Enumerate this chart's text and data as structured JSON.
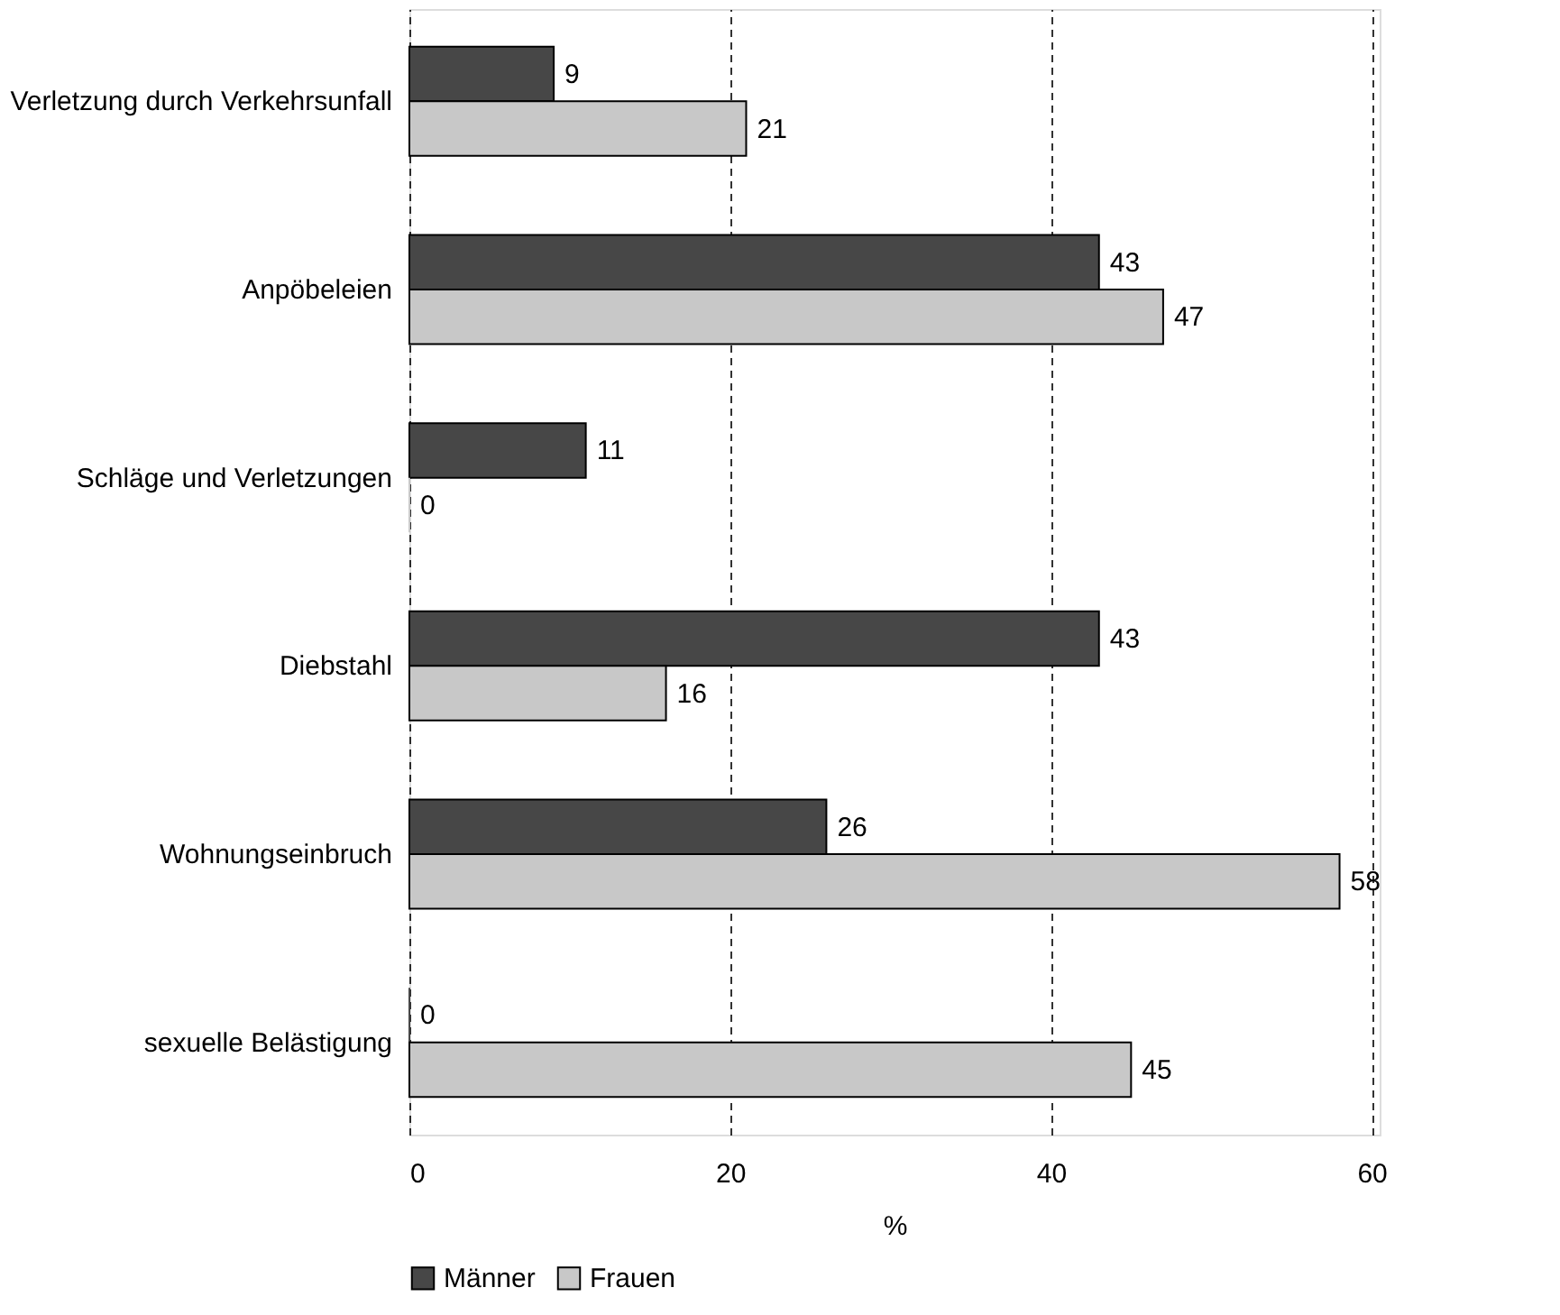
{
  "chart_data": {
    "type": "bar",
    "orientation": "horizontal",
    "xlabel": "%",
    "categories": [
      "Verletzung durch Verkehrsunfall",
      "Anpöbeleien",
      "Schläge und Verletzungen",
      "Diebstahl",
      "Wohnungseinbruch",
      "sexuelle Belästigung"
    ],
    "series": [
      {
        "name": "Männer",
        "color": "#474747",
        "values": [
          9,
          43,
          11,
          43,
          26,
          0
        ]
      },
      {
        "name": "Frauen",
        "color": "#c8c8c8",
        "values": [
          21,
          47,
          0,
          16,
          58,
          45
        ]
      }
    ],
    "xlim": [
      0,
      60.5
    ],
    "xticks": [
      0,
      20,
      40,
      60
    ],
    "grid": "x",
    "legend": "bottom",
    "data_labels": true
  }
}
